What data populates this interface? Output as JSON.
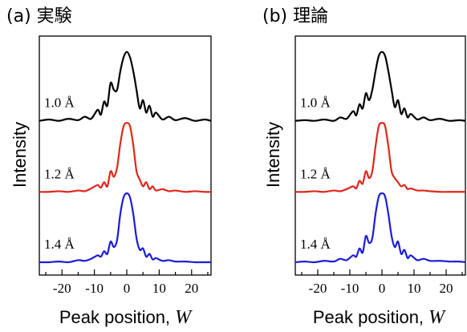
{
  "chart_data": [
    {
      "type": "line",
      "title": "(a) 実験",
      "xlabel_prefix": "Peak position, ",
      "xlabel_var": "W",
      "ylabel": "Intensity",
      "xlim": [
        -27,
        26
      ],
      "xticks": [
        -20,
        -10,
        0,
        10,
        20
      ],
      "xtick_labels": [
        "-20",
        "-10",
        "0",
        "10",
        "20"
      ],
      "yticks": false,
      "series": [
        {
          "name": "1.0 Å",
          "color": "#000000",
          "offset": 2.05,
          "x": [
            -27,
            -24,
            -21,
            -18,
            -15,
            -13,
            -11,
            -9,
            -8,
            -7,
            -6,
            -5,
            -4,
            -3,
            -2,
            -1,
            0,
            1,
            2,
            3,
            4,
            5,
            6,
            7,
            8,
            9,
            11,
            13,
            15,
            18,
            21,
            24,
            26
          ],
          "y": [
            0.0,
            0.02,
            0.0,
            0.03,
            0.01,
            0.06,
            0.03,
            0.16,
            0.09,
            0.28,
            0.22,
            0.55,
            0.45,
            0.45,
            0.72,
            0.92,
            1.0,
            0.92,
            0.72,
            0.45,
            0.18,
            0.3,
            0.12,
            0.22,
            0.06,
            0.12,
            0.02,
            0.06,
            0.01,
            0.04,
            0.0,
            0.02,
            0.0
          ]
        },
        {
          "name": "1.2 Å",
          "color": "#e0261c",
          "offset": 1.02,
          "x": [
            -27,
            -24,
            -21,
            -18,
            -15,
            -13,
            -11,
            -9,
            -8,
            -7,
            -6,
            -5,
            -4,
            -3,
            -2,
            -1,
            0,
            1,
            2,
            3,
            4,
            5,
            6,
            7,
            8,
            9,
            11,
            13,
            15,
            18,
            21,
            24,
            26
          ],
          "y": [
            0.0,
            0.0,
            0.01,
            0.0,
            0.02,
            0.01,
            0.05,
            0.1,
            0.06,
            0.14,
            0.08,
            0.3,
            0.22,
            0.35,
            0.7,
            0.95,
            1.0,
            0.95,
            0.68,
            0.3,
            0.18,
            0.08,
            0.14,
            0.04,
            0.08,
            0.02,
            0.04,
            0.01,
            0.02,
            0.0,
            0.01,
            0.0,
            0.0
          ]
        },
        {
          "name": "1.4 Å",
          "color": "#1c1cd6",
          "offset": 0.0,
          "x": [
            -27,
            -24,
            -21,
            -18,
            -15,
            -13,
            -11,
            -9,
            -8,
            -7,
            -6,
            -5,
            -4,
            -3,
            -2,
            -1,
            0,
            1,
            2,
            3,
            4,
            5,
            6,
            7,
            8,
            9,
            11,
            13,
            15,
            18,
            21,
            24,
            26
          ],
          "y": [
            0.0,
            0.0,
            0.01,
            0.0,
            0.03,
            0.02,
            0.05,
            0.1,
            0.08,
            0.16,
            0.12,
            0.3,
            0.22,
            0.32,
            0.7,
            0.94,
            1.0,
            0.94,
            0.7,
            0.35,
            0.18,
            0.2,
            0.08,
            0.12,
            0.04,
            0.06,
            0.02,
            0.03,
            0.01,
            0.01,
            0.0,
            0.0,
            0.0
          ]
        }
      ]
    },
    {
      "type": "line",
      "title": "(b) 理論",
      "xlabel_prefix": "Peak position, ",
      "xlabel_var": "W",
      "ylabel": "Intensity",
      "xlim": [
        -27,
        26
      ],
      "xticks": [
        -20,
        -10,
        0,
        10,
        20
      ],
      "xtick_labels": [
        "-20",
        "-10",
        "0",
        "10",
        "20"
      ],
      "yticks": false,
      "series": [
        {
          "name": "1.0 Å",
          "color": "#000000",
          "offset": 2.05,
          "x": [
            -27,
            -24,
            -21,
            -18,
            -15,
            -13,
            -11,
            -9,
            -8,
            -7,
            -6,
            -5,
            -4,
            -3,
            -2,
            -1,
            0,
            1,
            2,
            3,
            4,
            5,
            6,
            7,
            8,
            9,
            11,
            13,
            15,
            18,
            21,
            24,
            26
          ],
          "y": [
            0.0,
            0.01,
            0.0,
            0.02,
            0.0,
            0.05,
            0.03,
            0.14,
            0.08,
            0.24,
            0.18,
            0.4,
            0.3,
            0.45,
            0.72,
            0.94,
            1.0,
            0.94,
            0.72,
            0.45,
            0.2,
            0.3,
            0.1,
            0.18,
            0.05,
            0.1,
            0.02,
            0.05,
            0.01,
            0.03,
            0.0,
            0.01,
            0.0
          ]
        },
        {
          "name": "1.2 Å",
          "color": "#e0261c",
          "offset": 1.02,
          "x": [
            -27,
            -24,
            -21,
            -18,
            -15,
            -13,
            -11,
            -9,
            -8,
            -7,
            -6,
            -5,
            -4,
            -3,
            -2,
            -1,
            0,
            1,
            2,
            3,
            4,
            5,
            6,
            7,
            8,
            9,
            11,
            13,
            15,
            18,
            21,
            24,
            26
          ],
          "y": [
            0.0,
            0.0,
            0.01,
            0.0,
            0.02,
            0.01,
            0.04,
            0.08,
            0.05,
            0.16,
            0.12,
            0.3,
            0.2,
            0.3,
            0.66,
            0.95,
            1.0,
            0.95,
            0.66,
            0.3,
            0.2,
            0.14,
            0.08,
            0.1,
            0.04,
            0.05,
            0.02,
            0.02,
            0.01,
            0.0,
            0.0,
            0.0,
            0.0
          ]
        },
        {
          "name": "1.4 Å",
          "color": "#1c1cd6",
          "offset": 0.0,
          "x": [
            -27,
            -24,
            -21,
            -18,
            -15,
            -13,
            -11,
            -9,
            -8,
            -7,
            -6,
            -5,
            -4,
            -3,
            -2,
            -1,
            0,
            1,
            2,
            3,
            4,
            5,
            6,
            7,
            8,
            9,
            11,
            13,
            15,
            18,
            21,
            24,
            26
          ],
          "y": [
            0.0,
            0.01,
            0.0,
            0.02,
            0.01,
            0.05,
            0.03,
            0.1,
            0.08,
            0.2,
            0.14,
            0.38,
            0.28,
            0.35,
            0.7,
            0.95,
            1.0,
            0.95,
            0.7,
            0.38,
            0.22,
            0.3,
            0.12,
            0.18,
            0.06,
            0.1,
            0.03,
            0.05,
            0.02,
            0.02,
            0.01,
            0.01,
            0.0
          ]
        }
      ]
    }
  ]
}
